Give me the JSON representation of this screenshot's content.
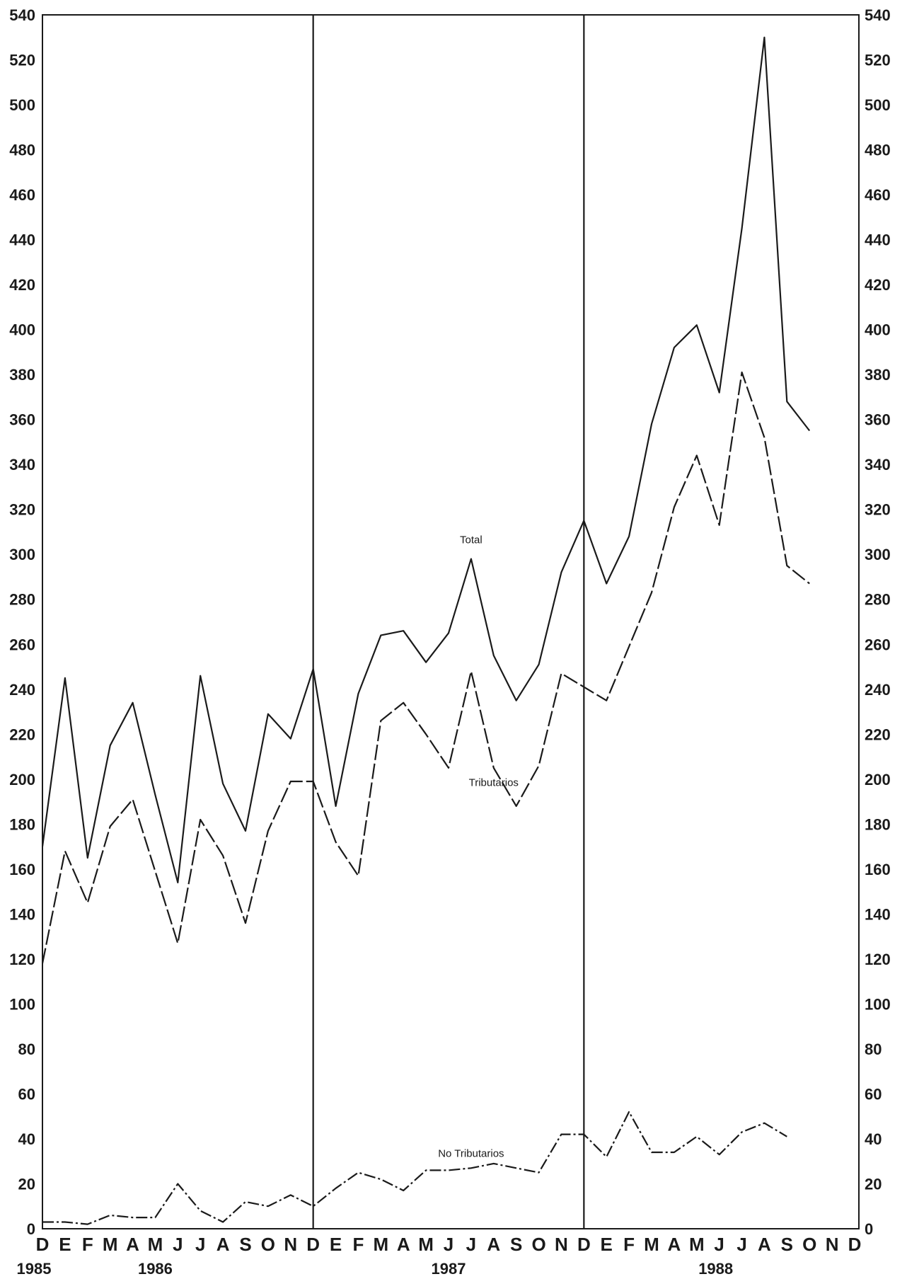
{
  "chart_data": {
    "type": "line",
    "title": "",
    "xlabel": "",
    "ylabel": "",
    "ylim": [
      0,
      540
    ],
    "y_ticks": [
      0,
      20,
      40,
      60,
      80,
      100,
      120,
      140,
      160,
      180,
      200,
      220,
      240,
      260,
      280,
      300,
      320,
      340,
      360,
      380,
      400,
      420,
      440,
      460,
      480,
      500,
      520,
      540
    ],
    "x": [
      "D",
      "E",
      "F",
      "M",
      "A",
      "M",
      "J",
      "J",
      "A",
      "S",
      "O",
      "N",
      "D",
      "E",
      "F",
      "M",
      "A",
      "M",
      "J",
      "J",
      "A",
      "S",
      "O",
      "N",
      "D",
      "E",
      "F",
      "M",
      "A",
      "M",
      "J",
      "J",
      "A",
      "S",
      "O",
      "N",
      "D"
    ],
    "year_labels": [
      "1985",
      "1986",
      "1987",
      "1988"
    ],
    "grid": false,
    "series": [
      {
        "name": "Total",
        "values": [
          170,
          245,
          165,
          215,
          234,
          193,
          154,
          246,
          198,
          177,
          229,
          218,
          249,
          188,
          238,
          264,
          266,
          252,
          265,
          298,
          255,
          235,
          251,
          292,
          315,
          287,
          308,
          358,
          392,
          402,
          372,
          445,
          530,
          368,
          355,
          null,
          null
        ]
      },
      {
        "name": "Tributarios",
        "values": [
          118,
          168,
          145,
          179,
          191,
          159,
          127,
          182,
          166,
          136,
          177,
          199,
          199,
          172,
          157,
          226,
          234,
          220,
          205,
          248,
          205,
          188,
          206,
          247,
          241,
          235,
          259,
          283,
          321,
          344,
          313,
          381,
          352,
          295,
          287,
          null,
          null
        ]
      },
      {
        "name": "No Tributarios",
        "values": [
          3,
          3,
          2,
          6,
          5,
          5,
          20,
          8,
          3,
          12,
          10,
          15,
          10,
          18,
          25,
          22,
          17,
          26,
          26,
          27,
          29,
          27,
          25,
          42,
          42,
          32,
          52,
          34,
          34,
          41,
          33,
          43,
          47,
          41,
          null,
          null,
          null
        ]
      }
    ]
  }
}
